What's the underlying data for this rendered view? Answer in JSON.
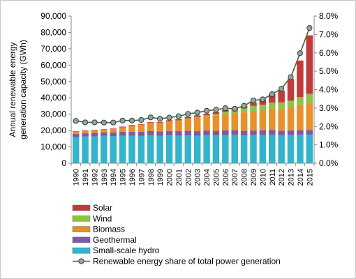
{
  "chart_data": {
    "type": "bar",
    "stacked": true,
    "ylabel": "Annual renewable energy generation capacity  (GWh)",
    "ylim": [
      0,
      90000
    ],
    "y_ticks": [
      "0",
      "10,000",
      "20,000",
      "30,000",
      "40,000",
      "50,000",
      "60,000",
      "70,000",
      "80,000",
      "90,000"
    ],
    "y2lim": [
      0,
      0.08
    ],
    "y2_ticks": [
      "0.0%",
      "1.0%",
      "2.0%",
      "3.0%",
      "4.0%",
      "5.0%",
      "6.0%",
      "7.0%",
      "8.0%"
    ],
    "categories": [
      "1990",
      "1991",
      "1992",
      "1993",
      "1994",
      "1995",
      "1996",
      "1997",
      "1998",
      "1999",
      "2000",
      "2001",
      "2002",
      "2003",
      "2004",
      "2005",
      "2006",
      "2007",
      "2008",
      "2009",
      "2010",
      "2011",
      "2012",
      "2013",
      "2014",
      "2015"
    ],
    "series": [
      {
        "name": "Small-scale hydro",
        "color": "#33b4cc",
        "values": [
          16000,
          16300,
          16400,
          16700,
          16600,
          16800,
          16800,
          16700,
          17100,
          16800,
          17000,
          16900,
          17000,
          16800,
          17200,
          17000,
          17300,
          17400,
          17000,
          17200,
          17300,
          17500,
          17100,
          17200,
          17400,
          17500
        ]
      },
      {
        "name": "Geothermal",
        "color": "#7b5aa6",
        "values": [
          2000,
          2000,
          2100,
          2100,
          2200,
          2400,
          2500,
          2600,
          2600,
          2700,
          2700,
          2700,
          2800,
          2800,
          2800,
          2800,
          2800,
          2800,
          2800,
          2800,
          2800,
          2800,
          2800,
          2800,
          2800,
          2800
        ]
      },
      {
        "name": "Biomass",
        "color": "#e8902a",
        "values": [
          1300,
          1500,
          1600,
          1700,
          2100,
          2800,
          3700,
          4300,
          4900,
          5300,
          5900,
          6400,
          7400,
          8300,
          8600,
          9300,
          9800,
          10300,
          11300,
          12000,
          12100,
          12700,
          13100,
          13700,
          15300,
          16500
        ]
      },
      {
        "name": "Wind",
        "color": "#8ec24a",
        "values": [
          0,
          0,
          0,
          0,
          0,
          0,
          0,
          0,
          0,
          0,
          100,
          200,
          300,
          400,
          700,
          1000,
          1500,
          2000,
          2500,
          3100,
          3600,
          4100,
          4200,
          4500,
          4900,
          5600
        ]
      },
      {
        "name": "Solar",
        "color": "#c23a3a",
        "values": [
          300,
          300,
          300,
          300,
          300,
          400,
          400,
          400,
          500,
          500,
          600,
          700,
          800,
          900,
          1000,
          1100,
          1200,
          1400,
          1500,
          2000,
          3300,
          5100,
          7100,
          13300,
          22400,
          35800
        ]
      }
    ],
    "line": {
      "name": "Renewable energy share of total power generation",
      "axis": "secondary",
      "values": [
        0.023,
        0.0222,
        0.0222,
        0.0221,
        0.0221,
        0.0232,
        0.0232,
        0.0235,
        0.0249,
        0.0242,
        0.0248,
        0.0255,
        0.0268,
        0.0275,
        0.0285,
        0.0291,
        0.0299,
        0.0296,
        0.0312,
        0.0341,
        0.0347,
        0.0375,
        0.0405,
        0.0468,
        0.0598,
        0.0735
      ]
    },
    "legend_position": "bottom-left",
    "grid": false
  }
}
